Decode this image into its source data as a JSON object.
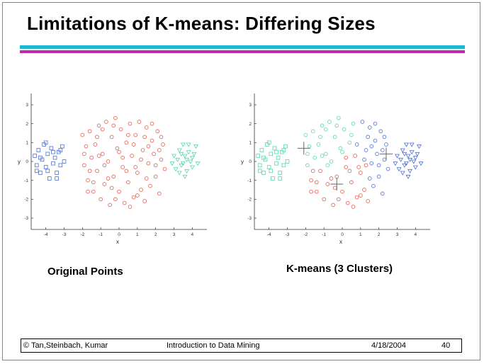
{
  "slide": {
    "title": "Limitations of K-means: Differing Sizes",
    "captions": {
      "left": "Original Points",
      "right": "K-means (3 Clusters)"
    },
    "footer": {
      "authors": "© Tan,Steinbach, Kumar",
      "course": "Introduction to Data Mining",
      "date": "4/18/2004",
      "page": "40"
    }
  },
  "chart_data": [
    {
      "type": "scatter",
      "title": "",
      "xlabel": "x",
      "ylabel": "y",
      "xlim": [
        -4.8,
        4.8
      ],
      "ylim": [
        -3.6,
        3.6
      ],
      "xticks": [
        -4,
        -3,
        -2,
        -1,
        0,
        1,
        2,
        3,
        4
      ],
      "yticks": [
        -3,
        -2,
        -1,
        0,
        1,
        2,
        3
      ],
      "grid": false,
      "series": [
        {
          "marker": "square",
          "color": "#4a6fd6",
          "points": [
            [
              -4.6,
              0.3
            ],
            [
              -4.5,
              -0.2
            ],
            [
              -4.4,
              0.6
            ],
            [
              -4.3,
              -0.6
            ],
            [
              -4.2,
              0.1
            ],
            [
              -4.1,
              0.9
            ],
            [
              -4.0,
              -0.3
            ],
            [
              -3.9,
              0.4
            ],
            [
              -3.8,
              -0.9
            ],
            [
              -3.7,
              0.7
            ],
            [
              -3.6,
              -0.1
            ],
            [
              -3.5,
              0.2
            ],
            [
              -3.4,
              -0.6
            ],
            [
              -3.3,
              0.5
            ],
            [
              -3.2,
              -0.2
            ],
            [
              -3.1,
              0.8
            ],
            [
              -3.0,
              0.0
            ],
            [
              -4.5,
              -0.5
            ],
            [
              -4.3,
              0.2
            ],
            [
              -3.9,
              -0.5
            ],
            [
              -3.6,
              0.5
            ],
            [
              -3.4,
              -0.9
            ],
            [
              -4.0,
              1.0
            ],
            [
              -3.2,
              0.6
            ]
          ]
        },
        {
          "marker": "circle",
          "color": "#e35a4d",
          "points": [
            [
              -2.0,
              1.4
            ],
            [
              -1.8,
              0.8
            ],
            [
              -1.9,
              -0.2
            ],
            [
              -1.7,
              -1.0
            ],
            [
              -1.6,
              1.6
            ],
            [
              -1.5,
              0.2
            ],
            [
              -1.4,
              -1.6
            ],
            [
              -1.3,
              0.9
            ],
            [
              -1.2,
              -0.5
            ],
            [
              -1.1,
              1.9
            ],
            [
              -1.0,
              -2.0
            ],
            [
              -0.9,
              0.4
            ],
            [
              -0.8,
              -1.2
            ],
            [
              -0.7,
              2.1
            ],
            [
              -0.6,
              0.0
            ],
            [
              -0.5,
              -2.3
            ],
            [
              -0.4,
              1.3
            ],
            [
              -0.3,
              -0.8
            ],
            [
              -0.2,
              2.3
            ],
            [
              -0.1,
              0.7
            ],
            [
              0.0,
              -1.6
            ],
            [
              0.1,
              1.7
            ],
            [
              0.2,
              -0.3
            ],
            [
              0.3,
              -2.2
            ],
            [
              0.4,
              1.0
            ],
            [
              0.5,
              -1.1
            ],
            [
              0.6,
              2.0
            ],
            [
              0.7,
              0.3
            ],
            [
              0.8,
              -1.9
            ],
            [
              0.9,
              1.4
            ],
            [
              1.0,
              -0.6
            ],
            [
              1.1,
              2.1
            ],
            [
              1.2,
              -1.5
            ],
            [
              1.3,
              0.6
            ],
            [
              1.4,
              -2.1
            ],
            [
              1.5,
              1.8
            ],
            [
              1.6,
              -0.1
            ],
            [
              1.7,
              -1.3
            ],
            [
              1.8,
              1.1
            ],
            [
              1.9,
              0.4
            ],
            [
              2.0,
              -0.8
            ],
            [
              2.1,
              1.6
            ],
            [
              2.2,
              -1.7
            ],
            [
              2.3,
              0.1
            ],
            [
              2.4,
              0.9
            ],
            [
              2.5,
              -0.4
            ],
            [
              -1.6,
              -0.5
            ],
            [
              -1.2,
              1.3
            ],
            [
              -0.8,
              -0.2
            ],
            [
              -0.4,
              -1.4
            ],
            [
              0.0,
              0.5
            ],
            [
              0.4,
              -0.5
            ],
            [
              0.8,
              0.9
            ],
            [
              1.2,
              0.1
            ],
            [
              1.6,
              0.8
            ],
            [
              2.0,
              -0.2
            ],
            [
              -1.9,
              0.4
            ],
            [
              -1.4,
              -1.1
            ],
            [
              -0.9,
              1.7
            ],
            [
              -0.2,
              -2.0
            ],
            [
              0.5,
              1.4
            ],
            [
              1.0,
              -1.8
            ],
            [
              1.5,
              -0.9
            ],
            [
              2.2,
              0.6
            ],
            [
              -0.6,
              -0.9
            ],
            [
              0.2,
              0.2
            ],
            [
              0.9,
              -0.3
            ],
            [
              1.4,
              1.3
            ],
            [
              -1.1,
              0.3
            ],
            [
              -0.3,
              1.9
            ],
            [
              2.3,
              1.3
            ],
            [
              -1.7,
              -1.6
            ],
            [
              0.6,
              -2.4
            ],
            [
              1.8,
              2.0
            ]
          ]
        },
        {
          "marker": "triangle-down",
          "color": "#55d8a6",
          "points": [
            [
              2.9,
              -0.1
            ],
            [
              3.0,
              0.3
            ],
            [
              3.1,
              -0.4
            ],
            [
              3.2,
              0.1
            ],
            [
              3.3,
              0.6
            ],
            [
              3.4,
              -0.2
            ],
            [
              3.5,
              0.9
            ],
            [
              3.6,
              0.3
            ],
            [
              3.7,
              -0.5
            ],
            [
              3.8,
              0.5
            ],
            [
              3.9,
              0.0
            ],
            [
              4.0,
              -0.3
            ],
            [
              4.1,
              0.4
            ],
            [
              4.2,
              0.8
            ],
            [
              4.3,
              -0.1
            ],
            [
              3.6,
              -0.8
            ],
            [
              3.8,
              0.9
            ],
            [
              3.4,
              0.4
            ],
            [
              3.3,
              -0.6
            ],
            [
              4.0,
              0.2
            ],
            [
              3.7,
              0.1
            ],
            [
              3.5,
              -0.1
            ]
          ]
        }
      ]
    },
    {
      "type": "scatter",
      "title": "",
      "xlabel": "x",
      "ylabel": "y",
      "xlim": [
        -4.8,
        4.8
      ],
      "ylim": [
        -3.6,
        3.6
      ],
      "xticks": [
        -4,
        -3,
        -2,
        -1,
        0,
        1,
        2,
        3,
        4
      ],
      "yticks": [
        -3,
        -2,
        -1,
        0,
        1,
        2,
        3
      ],
      "grid": false,
      "series": [
        {
          "marker": "square",
          "color": "#55d8a6",
          "points": [
            [
              -4.6,
              0.3
            ],
            [
              -4.5,
              -0.2
            ],
            [
              -4.4,
              0.6
            ],
            [
              -4.3,
              -0.6
            ],
            [
              -4.2,
              0.1
            ],
            [
              -4.1,
              0.9
            ],
            [
              -4.0,
              -0.3
            ],
            [
              -3.9,
              0.4
            ],
            [
              -3.8,
              -0.9
            ],
            [
              -3.7,
              0.7
            ],
            [
              -3.6,
              -0.1
            ],
            [
              -3.5,
              0.2
            ],
            [
              -3.4,
              -0.6
            ],
            [
              -3.3,
              0.5
            ],
            [
              -3.2,
              -0.2
            ],
            [
              -3.1,
              0.8
            ],
            [
              -3.0,
              0.0
            ],
            [
              -4.5,
              -0.5
            ],
            [
              -4.3,
              0.2
            ],
            [
              -3.9,
              -0.5
            ],
            [
              -3.6,
              0.5
            ],
            [
              -3.4,
              -0.9
            ],
            [
              -4.0,
              1.0
            ],
            [
              -3.2,
              0.6
            ]
          ]
        },
        {
          "marker": "circle",
          "color": "#55d8a6",
          "points": [
            [
              -2.0,
              1.4
            ],
            [
              -1.8,
              0.8
            ],
            [
              -1.9,
              -0.2
            ],
            [
              -1.6,
              1.6
            ],
            [
              -1.3,
              0.9
            ],
            [
              -1.1,
              1.9
            ],
            [
              -0.9,
              0.4
            ],
            [
              -0.7,
              2.1
            ],
            [
              -0.4,
              1.3
            ],
            [
              -0.2,
              2.3
            ],
            [
              -0.1,
              0.7
            ],
            [
              0.1,
              1.7
            ],
            [
              0.4,
              1.0
            ],
            [
              0.6,
              2.0
            ],
            [
              -1.2,
              1.3
            ],
            [
              -0.9,
              1.7
            ],
            [
              -1.1,
              0.3
            ],
            [
              -0.3,
              1.9
            ],
            [
              -1.9,
              0.4
            ],
            [
              0.0,
              0.5
            ],
            [
              -1.5,
              0.2
            ],
            [
              0.5,
              1.4
            ],
            [
              -0.6,
              0.0
            ],
            [
              -0.8,
              -0.2
            ]
          ]
        },
        {
          "marker": "circle",
          "color": "#e35a4d",
          "points": [
            [
              -1.7,
              -1.0
            ],
            [
              -1.4,
              -1.6
            ],
            [
              -1.2,
              -0.5
            ],
            [
              -1.0,
              -2.0
            ],
            [
              -0.8,
              -1.2
            ],
            [
              -0.5,
              -2.3
            ],
            [
              -0.3,
              -0.8
            ],
            [
              0.0,
              -1.6
            ],
            [
              0.2,
              -0.3
            ],
            [
              0.3,
              -2.2
            ],
            [
              0.5,
              -1.1
            ],
            [
              0.8,
              -1.9
            ],
            [
              1.0,
              -0.6
            ],
            [
              1.2,
              -1.5
            ],
            [
              1.4,
              -2.1
            ],
            [
              -1.6,
              -0.5
            ],
            [
              -0.4,
              -1.4
            ],
            [
              0.4,
              -0.5
            ],
            [
              -1.4,
              -1.1
            ],
            [
              -0.2,
              -2.0
            ],
            [
              1.0,
              -1.8
            ],
            [
              -0.6,
              -0.9
            ],
            [
              0.2,
              0.2
            ],
            [
              0.9,
              -0.3
            ],
            [
              -1.7,
              -1.6
            ],
            [
              0.6,
              -2.4
            ],
            [
              0.7,
              0.3
            ],
            [
              1.3,
              -0.2
            ]
          ]
        },
        {
          "marker": "circle",
          "color": "#4a6fd6",
          "points": [
            [
              1.1,
              2.1
            ],
            [
              1.3,
              0.6
            ],
            [
              1.5,
              1.8
            ],
            [
              1.6,
              -0.1
            ],
            [
              1.7,
              -1.3
            ],
            [
              1.8,
              1.1
            ],
            [
              1.9,
              0.4
            ],
            [
              2.0,
              -0.8
            ],
            [
              2.1,
              1.6
            ],
            [
              2.2,
              -1.7
            ],
            [
              2.3,
              0.1
            ],
            [
              2.4,
              0.9
            ],
            [
              2.5,
              -0.4
            ],
            [
              0.8,
              0.9
            ],
            [
              1.2,
              0.1
            ],
            [
              1.6,
              0.8
            ],
            [
              2.0,
              -0.2
            ],
            [
              1.5,
              -0.9
            ],
            [
              2.2,
              0.6
            ],
            [
              1.4,
              1.3
            ],
            [
              2.3,
              1.3
            ],
            [
              1.8,
              2.0
            ]
          ]
        },
        {
          "marker": "triangle-down",
          "color": "#4a6fd6",
          "points": [
            [
              2.9,
              -0.1
            ],
            [
              3.0,
              0.3
            ],
            [
              3.1,
              -0.4
            ],
            [
              3.2,
              0.1
            ],
            [
              3.3,
              0.6
            ],
            [
              3.4,
              -0.2
            ],
            [
              3.5,
              0.9
            ],
            [
              3.6,
              0.3
            ],
            [
              3.7,
              -0.5
            ],
            [
              3.8,
              0.5
            ],
            [
              3.9,
              0.0
            ],
            [
              4.0,
              -0.3
            ],
            [
              4.1,
              0.4
            ],
            [
              4.2,
              0.8
            ],
            [
              4.3,
              -0.1
            ],
            [
              3.6,
              -0.8
            ],
            [
              3.8,
              0.9
            ],
            [
              3.4,
              0.4
            ],
            [
              3.3,
              -0.6
            ],
            [
              4.0,
              0.2
            ],
            [
              3.7,
              0.1
            ],
            [
              3.5,
              -0.1
            ]
          ]
        }
      ],
      "centroids": [
        [
          -2.1,
          0.7
        ],
        [
          -0.3,
          -1.2
        ],
        [
          2.4,
          0.4
        ]
      ]
    }
  ]
}
